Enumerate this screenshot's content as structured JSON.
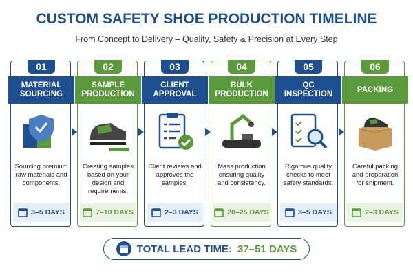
{
  "header": {
    "title": "CUSTOM SAFETY SHOE PRODUCTION TIMELINE",
    "subtitle": "From Concept to Delivery – Quality, Safety & Precision at Every Step"
  },
  "steps": [
    {
      "number": "01",
      "title": "MATERIAL SOURCING",
      "description": "Sourcing premium raw materials and components.",
      "duration": "3–5 DAYS",
      "color": "#1d4f91"
    },
    {
      "number": "02",
      "title": "SAMPLE PRODUCTION",
      "description": "Creating samples based on your design and requirements.",
      "duration": "7–10 DAYS",
      "color": "#5a9a3a"
    },
    {
      "number": "03",
      "title": "CLIENT APPROVAL",
      "description": "Client reviews and approves the samples.",
      "duration": "2–3 DAYS",
      "color": "#1d4f91"
    },
    {
      "number": "04",
      "title": "BULK PRODUCTION",
      "description": "Mass production ensuring quality and consistency.",
      "duration": "20–25 DAYS",
      "color": "#5a9a3a"
    },
    {
      "number": "05",
      "title": "QC INSPECTION",
      "description": "Rigorous quality checks to meet safety standards.",
      "duration": "3–5 DAYS",
      "color": "#1d4f91"
    },
    {
      "number": "06",
      "title": "PACKING",
      "description": "Careful packing and preparation for shipment.",
      "duration": "2–3 DAYS",
      "color": "#5a9a3a"
    }
  ],
  "total": {
    "label": "TOTAL LEAD TIME:",
    "value": "37–51 DAYS"
  }
}
